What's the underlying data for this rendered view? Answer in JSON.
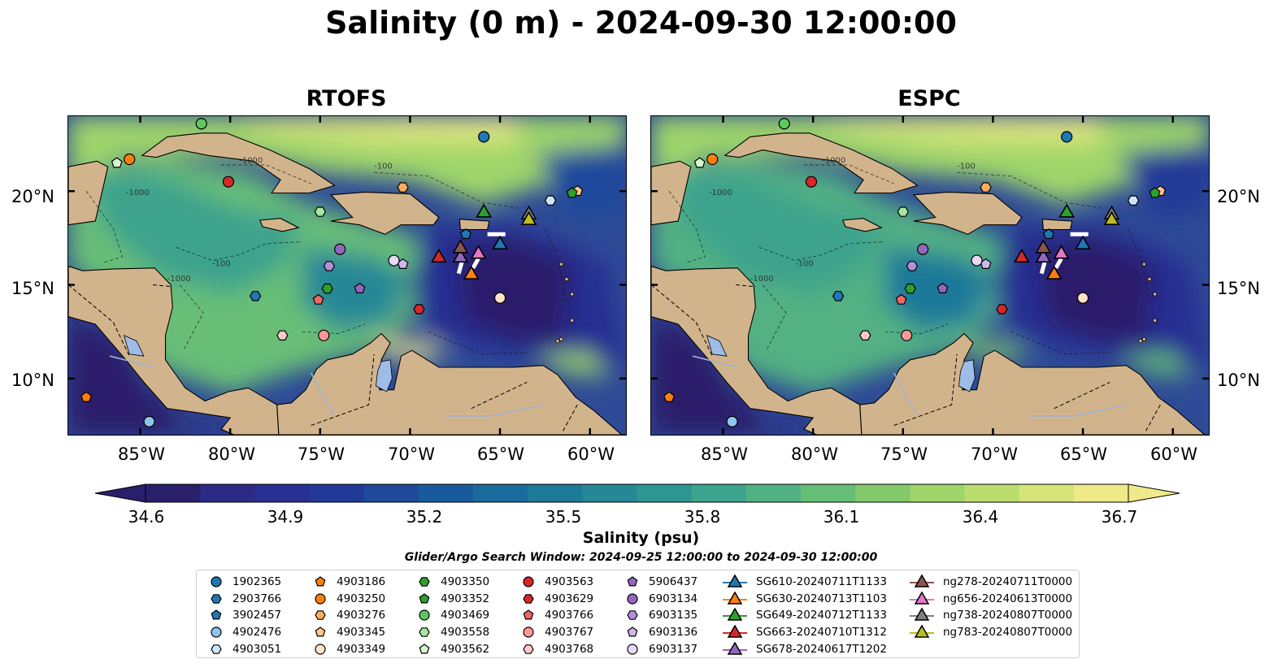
{
  "title": "Salinity (0 m) - 2024-09-30 12:00:00",
  "panels": [
    {
      "title": "RTOFS"
    },
    {
      "title": "ESPC"
    }
  ],
  "map": {
    "lon_range": [
      -89,
      -58
    ],
    "lat_range": [
      7,
      24
    ],
    "lat_labels": [
      "20°N",
      "15°N",
      "10°N"
    ],
    "lon_labels": [
      "85°W",
      "80°W",
      "75°W",
      "70°W",
      "65°W",
      "60°W"
    ],
    "contour_labels": [
      "-1000",
      "-100"
    ],
    "colors": {
      "land": "#d2b48c",
      "lakes": "#9dbde6",
      "rivers": "#a0b4d0"
    }
  },
  "colorbar": {
    "label": "Salinity (psu)",
    "min": 34.6,
    "max": 36.7,
    "ticks": [
      "34.6",
      "34.9",
      "35.2",
      "35.5",
      "35.8",
      "36.1",
      "36.4",
      "36.7"
    ],
    "colors": [
      "#2a1f6b",
      "#2b2a85",
      "#272f92",
      "#213a97",
      "#1d4a9b",
      "#195a9d",
      "#1a6a9c",
      "#1f7999",
      "#268896",
      "#2e9593",
      "#3da38d",
      "#52b183",
      "#67be77",
      "#82ca6c",
      "#9fd56a",
      "#bbdd70",
      "#d6e47a",
      "#f0e98a"
    ]
  },
  "search_window": "Glider/Argo Search Window: 2024-09-25 12:00:00 to 2024-09-30 12:00:00",
  "legend": {
    "argo": [
      {
        "id": "1902365",
        "marker": "circle",
        "color": "#1f77b4"
      },
      {
        "id": "2903766",
        "marker": "hexagon",
        "color": "#1f77b4"
      },
      {
        "id": "3902457",
        "marker": "pentagon",
        "color": "#1f77b4"
      },
      {
        "id": "4902476",
        "marker": "circle",
        "color": "#8ec5ec"
      },
      {
        "id": "4903051",
        "marker": "hexagon",
        "color": "#cde6f7"
      },
      {
        "id": "4903186",
        "marker": "pentagon",
        "color": "#ff7f0e"
      },
      {
        "id": "4903250",
        "marker": "circle",
        "color": "#ff7f0e"
      },
      {
        "id": "4903276",
        "marker": "hexagon",
        "color": "#ffad5e"
      },
      {
        "id": "4903345",
        "marker": "pentagon",
        "color": "#ffc58a"
      },
      {
        "id": "4903349",
        "marker": "circle",
        "color": "#ffe3c6"
      },
      {
        "id": "4903350",
        "marker": "hexagon",
        "color": "#2ca02c"
      },
      {
        "id": "4903352",
        "marker": "pentagon",
        "color": "#2ca02c"
      },
      {
        "id": "4903469",
        "marker": "circle",
        "color": "#5ec85e"
      },
      {
        "id": "4903558",
        "marker": "hexagon",
        "color": "#a7e6a0"
      },
      {
        "id": "4903562",
        "marker": "pentagon",
        "color": "#d5f5cf"
      },
      {
        "id": "4903563",
        "marker": "circle",
        "color": "#d62728"
      },
      {
        "id": "4903629",
        "marker": "hexagon",
        "color": "#d62728"
      },
      {
        "id": "4903766",
        "marker": "pentagon",
        "color": "#f06565"
      },
      {
        "id": "4903767",
        "marker": "circle",
        "color": "#ff9896"
      },
      {
        "id": "4903768",
        "marker": "hexagon",
        "color": "#ffc9c7"
      },
      {
        "id": "5906437",
        "marker": "pentagon",
        "color": "#9467bd"
      },
      {
        "id": "6903134",
        "marker": "circle",
        "color": "#9467bd"
      },
      {
        "id": "6903135",
        "marker": "hexagon",
        "color": "#b58fdc"
      },
      {
        "id": "6903136",
        "marker": "pentagon",
        "color": "#d1b6ee"
      },
      {
        "id": "6903137",
        "marker": "circle",
        "color": "#e6d8f6"
      }
    ],
    "gliders": [
      {
        "id": "SG610-20240711T1133",
        "color": "#1f77b4"
      },
      {
        "id": "SG630-20240713T1103",
        "color": "#ff7f0e"
      },
      {
        "id": "SG649-20240712T1133",
        "color": "#2ca02c"
      },
      {
        "id": "SG663-20240710T1312",
        "color": "#d62728"
      },
      {
        "id": "SG678-20240617T1202",
        "color": "#9467bd"
      },
      {
        "id": "ng278-20240711T0000",
        "color": "#8c564b"
      },
      {
        "id": "ng656-20240613T0000",
        "color": "#e377c2"
      },
      {
        "id": "ng738-20240807T0000",
        "color": "#7f7f7f"
      },
      {
        "id": "ng783-20240807T0000",
        "color": "#bcbd22"
      }
    ]
  },
  "argo_positions": [
    {
      "id": "1902365",
      "lon": -65.9,
      "lat": 22.9
    },
    {
      "id": "2903766",
      "lon": -78.6,
      "lat": 14.4
    },
    {
      "id": "3902457",
      "lon": -66.9,
      "lat": 17.7
    },
    {
      "id": "4902476",
      "lon": -84.5,
      "lat": 7.7
    },
    {
      "id": "4903051",
      "lon": -62.2,
      "lat": 19.5
    },
    {
      "id": "4903186",
      "lon": -88.0,
      "lat": 9.0
    },
    {
      "id": "4903250",
      "lon": -85.6,
      "lat": 21.7
    },
    {
      "id": "4903276",
      "lon": -70.4,
      "lat": 20.2
    },
    {
      "id": "4903345",
      "lon": -60.7,
      "lat": 20.0
    },
    {
      "id": "4903349",
      "lon": -65.0,
      "lat": 14.3
    },
    {
      "id": "4903350",
      "lon": -74.6,
      "lat": 14.8
    },
    {
      "id": "4903352",
      "lon": -61.0,
      "lat": 19.9
    },
    {
      "id": "4903469",
      "lon": -81.6,
      "lat": 23.6
    },
    {
      "id": "4903558",
      "lon": -75.0,
      "lat": 18.9
    },
    {
      "id": "4903562",
      "lon": -86.3,
      "lat": 21.5
    },
    {
      "id": "4903563",
      "lon": -80.1,
      "lat": 20.5
    },
    {
      "id": "4903629",
      "lon": -69.5,
      "lat": 13.7
    },
    {
      "id": "4903766",
      "lon": -75.1,
      "lat": 14.2
    },
    {
      "id": "4903767",
      "lon": -74.8,
      "lat": 12.3
    },
    {
      "id": "4903768",
      "lon": -77.1,
      "lat": 12.3
    },
    {
      "id": "5906437",
      "lon": -72.8,
      "lat": 14.8
    },
    {
      "id": "6903134",
      "lon": -73.9,
      "lat": 16.9
    },
    {
      "id": "6903135",
      "lon": -74.5,
      "lat": 16.0
    },
    {
      "id": "6903136",
      "lon": -70.4,
      "lat": 16.1
    },
    {
      "id": "6903137",
      "lon": -70.9,
      "lat": 16.3
    }
  ],
  "glider_positions": [
    {
      "id": "SG610-20240711T1133",
      "lon": -65.0,
      "lat": 17.2
    },
    {
      "id": "SG630-20240713T1103",
      "lon": -66.6,
      "lat": 15.6
    },
    {
      "id": "SG649-20240712T1133",
      "lon": -65.9,
      "lat": 18.9
    },
    {
      "id": "SG663-20240710T1312",
      "lon": -68.4,
      "lat": 16.5
    },
    {
      "id": "SG678-20240617T1202",
      "lon": -67.2,
      "lat": 16.5
    },
    {
      "id": "ng278-20240711T0000",
      "lon": -67.2,
      "lat": 17.0
    },
    {
      "id": "ng656-20240613T0000",
      "lon": -66.2,
      "lat": 16.7
    },
    {
      "id": "ng738-20240807T0000",
      "lon": -63.4,
      "lat": 18.8
    },
    {
      "id": "ng783-20240807T0000",
      "lon": -63.4,
      "lat": 18.5
    }
  ]
}
